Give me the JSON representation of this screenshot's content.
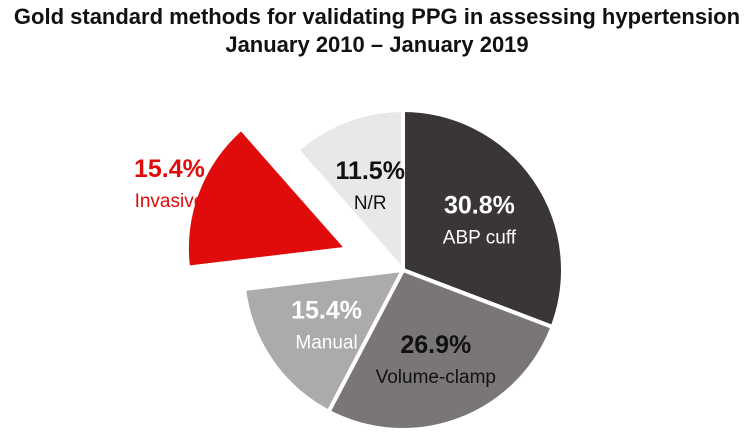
{
  "chart_data": {
    "type": "pie",
    "title": "Gold standard methods for validating PPG in assessing hypertension",
    "subtitle": "January 2010 – January 2019",
    "slices": [
      {
        "label": "ABP cuff",
        "value": 30.8,
        "value_label": "30.8%",
        "color": "#3a3636",
        "text_color": "#ffffff",
        "exploded": false
      },
      {
        "label": "Volume-clamp",
        "value": 26.9,
        "value_label": "26.9%",
        "color": "#7a7676",
        "text_color": "#111111",
        "exploded": false
      },
      {
        "label": "Manual",
        "value": 15.4,
        "value_label": "15.4%",
        "color": "#acaaaa",
        "text_color": "#ffffff",
        "exploded": false
      },
      {
        "label": "Invasive",
        "value": 15.4,
        "value_label": "15.4%",
        "color": "#e00b0b",
        "text_color": "#e00b0b",
        "exploded": true
      },
      {
        "label": "N/R",
        "value": 11.5,
        "value_label": "11.5%",
        "color": "#e9e8e8",
        "text_color": "#111111",
        "exploded": false
      }
    ]
  }
}
